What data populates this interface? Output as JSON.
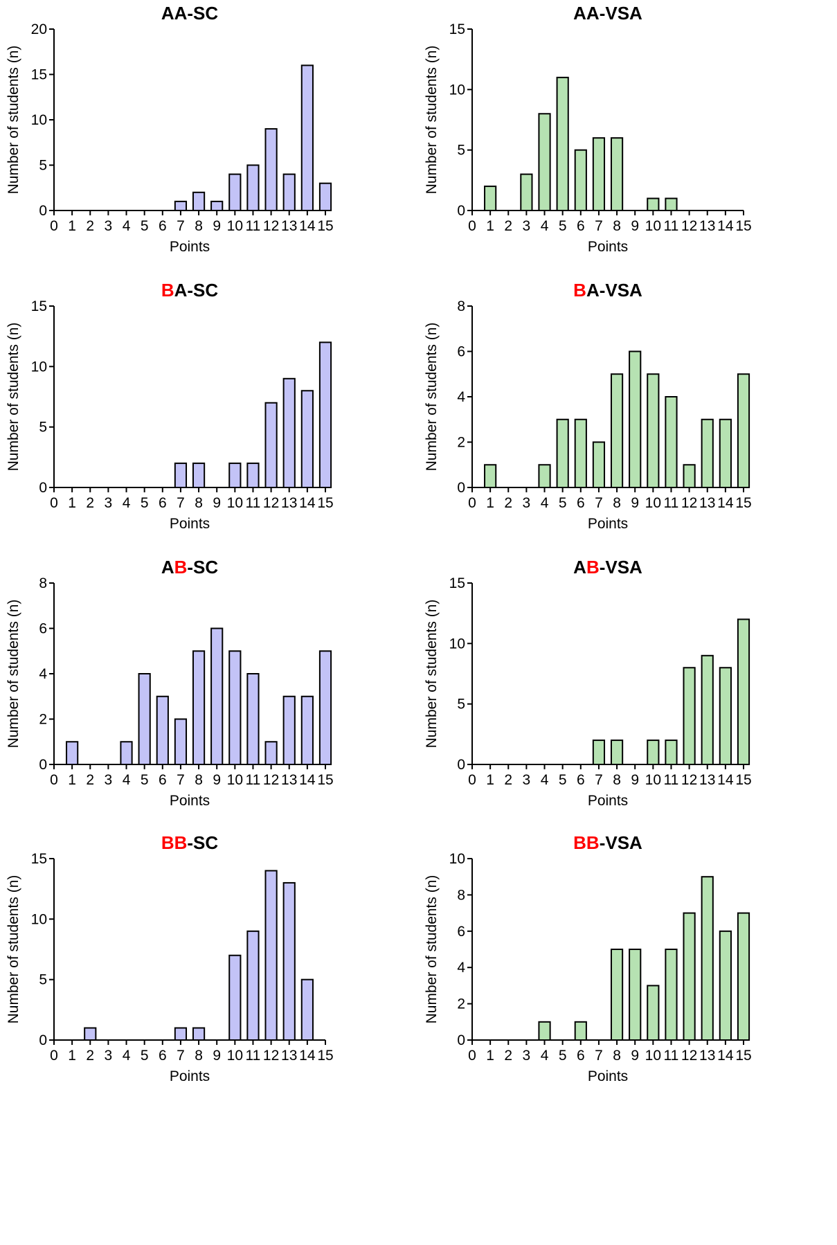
{
  "colors": {
    "sc_bar": "#c3c3f7",
    "vsa_bar": "#b6e2b2",
    "highlight": "#ff0000",
    "text": "#000000"
  },
  "x_tick_labels": [
    "0",
    "1",
    "2",
    "3",
    "4",
    "5",
    "6",
    "7",
    "8",
    "9",
    "10",
    "11",
    "12",
    "13",
    "14",
    "15"
  ],
  "chart_data": [
    {
      "type": "bar",
      "bar_color": "sc",
      "title": [
        {
          "text": "AA",
          "highlight": false
        },
        {
          "text": "-SC",
          "highlight": false
        }
      ],
      "xlabel": "Points",
      "ylabel": "Number of students (n)",
      "xlim": [
        0,
        15
      ],
      "ylim": [
        0,
        20
      ],
      "yticks": [
        0,
        5,
        10,
        15,
        20
      ],
      "categories": [
        7,
        8,
        9,
        10,
        11,
        12,
        13,
        14,
        15
      ],
      "values": [
        1,
        2,
        1,
        4,
        5,
        9,
        4,
        16,
        3
      ]
    },
    {
      "type": "bar",
      "bar_color": "vsa",
      "title": [
        {
          "text": "AA",
          "highlight": false
        },
        {
          "text": "-VSA",
          "highlight": false
        }
      ],
      "xlabel": "Points",
      "ylabel": "Number of students (n)",
      "xlim": [
        0,
        15
      ],
      "ylim": [
        0,
        15
      ],
      "yticks": [
        0,
        5,
        10,
        15
      ],
      "categories": [
        1,
        3,
        4,
        5,
        6,
        7,
        8,
        10,
        11
      ],
      "values": [
        2,
        3,
        8,
        11,
        5,
        6,
        6,
        1,
        1
      ]
    },
    {
      "type": "bar",
      "bar_color": "sc",
      "title": [
        {
          "text": "B",
          "highlight": true
        },
        {
          "text": "A-SC",
          "highlight": false
        }
      ],
      "xlabel": "Points",
      "ylabel": "Number of students (n)",
      "xlim": [
        0,
        15
      ],
      "ylim": [
        0,
        15
      ],
      "yticks": [
        0,
        5,
        10,
        15
      ],
      "categories": [
        7,
        8,
        10,
        11,
        12,
        13,
        14,
        15
      ],
      "values": [
        2,
        2,
        2,
        2,
        7,
        9,
        8,
        12
      ]
    },
    {
      "type": "bar",
      "bar_color": "vsa",
      "title": [
        {
          "text": "B",
          "highlight": true
        },
        {
          "text": "A-VSA",
          "highlight": false
        }
      ],
      "xlabel": "Points",
      "ylabel": "Number of students (n)",
      "xlim": [
        0,
        15
      ],
      "ylim": [
        0,
        8
      ],
      "yticks": [
        0,
        2,
        4,
        6,
        8
      ],
      "categories": [
        1,
        4,
        5,
        6,
        7,
        8,
        9,
        10,
        11,
        12,
        13,
        14,
        15
      ],
      "values": [
        1,
        1,
        3,
        3,
        2,
        5,
        6,
        5,
        4,
        1,
        3,
        3,
        5
      ]
    },
    {
      "type": "bar",
      "bar_color": "sc",
      "title": [
        {
          "text": "A",
          "highlight": false
        },
        {
          "text": "B",
          "highlight": true
        },
        {
          "text": "-SC",
          "highlight": false
        }
      ],
      "xlabel": "Points",
      "ylabel": "Number of students (n)",
      "xlim": [
        0,
        15
      ],
      "ylim": [
        0,
        8
      ],
      "yticks": [
        0,
        2,
        4,
        6,
        8
      ],
      "categories": [
        1,
        4,
        5,
        6,
        7,
        8,
        9,
        10,
        11,
        12,
        13,
        14,
        15
      ],
      "values": [
        1,
        1,
        4,
        3,
        2,
        5,
        6,
        5,
        4,
        1,
        3,
        3,
        5
      ]
    },
    {
      "type": "bar",
      "bar_color": "vsa",
      "title": [
        {
          "text": "A",
          "highlight": false
        },
        {
          "text": "B",
          "highlight": true
        },
        {
          "text": "-VSA",
          "highlight": false
        }
      ],
      "xlabel": "Points",
      "ylabel": "Number of students (n)",
      "xlim": [
        0,
        15
      ],
      "ylim": [
        0,
        15
      ],
      "yticks": [
        0,
        5,
        10,
        15
      ],
      "categories": [
        7,
        8,
        10,
        11,
        12,
        13,
        14,
        15
      ],
      "values": [
        2,
        2,
        2,
        2,
        8,
        9,
        8,
        12
      ]
    },
    {
      "type": "bar",
      "bar_color": "sc",
      "title": [
        {
          "text": "BB",
          "highlight": true
        },
        {
          "text": "-SC",
          "highlight": false
        }
      ],
      "xlabel": "Points",
      "ylabel": "Number of students (n)",
      "xlim": [
        0,
        15
      ],
      "ylim": [
        0,
        15
      ],
      "yticks": [
        0,
        5,
        10,
        15
      ],
      "categories": [
        2,
        7,
        8,
        10,
        11,
        12,
        13,
        14
      ],
      "values": [
        1,
        1,
        1,
        7,
        9,
        14,
        13,
        5
      ]
    },
    {
      "type": "bar",
      "bar_color": "vsa",
      "title": [
        {
          "text": "BB",
          "highlight": true
        },
        {
          "text": "-VSA",
          "highlight": false
        }
      ],
      "xlabel": "Points",
      "ylabel": "Number of students (n)",
      "xlim": [
        0,
        15
      ],
      "ylim": [
        0,
        10
      ],
      "yticks": [
        0,
        2,
        4,
        6,
        8,
        10
      ],
      "categories": [
        4,
        6,
        8,
        9,
        10,
        11,
        12,
        13,
        14,
        15
      ],
      "values": [
        1,
        1,
        5,
        5,
        3,
        5,
        7,
        9,
        6,
        7
      ]
    }
  ]
}
